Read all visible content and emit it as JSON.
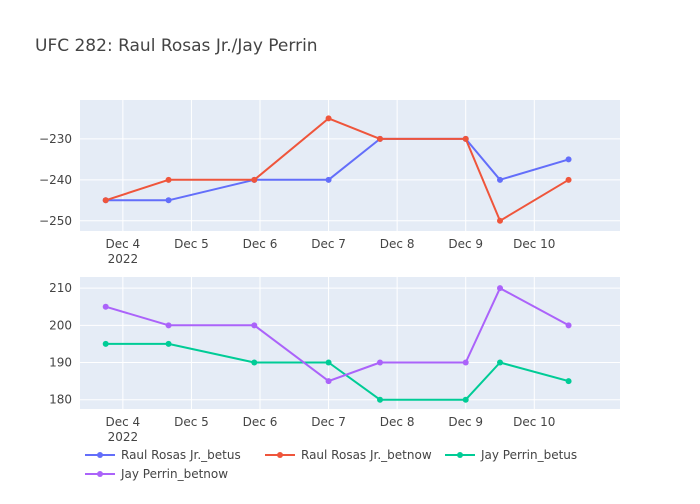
{
  "chart_data": {
    "type": "line",
    "title": "UFC 282: Raul Rosas Jr./Jay Perrin",
    "x_ticks": [
      {
        "label": "Dec 4",
        "sublabel": "2022",
        "date": "2022-12-04"
      },
      {
        "label": "Dec 5",
        "date": "2022-12-05"
      },
      {
        "label": "Dec 6",
        "date": "2022-12-06"
      },
      {
        "label": "Dec 7",
        "date": "2022-12-07"
      },
      {
        "label": "Dec 8",
        "date": "2022-12-08"
      },
      {
        "label": "Dec 9",
        "date": "2022-12-09"
      },
      {
        "label": "Dec 10",
        "date": "2022-12-10"
      }
    ],
    "x_range": [
      "2022-12-03 09:00",
      "2022-12-11 06:00"
    ],
    "panels": [
      {
        "ylim": [
          -252.5,
          -220.5
        ],
        "y_ticks": [
          -230,
          -240,
          -250
        ],
        "y_tick_labels": [
          "−230",
          "−240",
          "−250"
        ],
        "series": [
          {
            "name": "Raul Rosas Jr._betus",
            "color": "#636efa",
            "x": [
              "2022-12-03 18:00",
              "2022-12-04 16:00",
              "2022-12-05 22:00",
              "2022-12-07 00:00",
              "2022-12-07 18:00",
              "2022-12-09 00:00",
              "2022-12-09 12:00",
              "2022-12-10 12:00"
            ],
            "y": [
              -245,
              -245,
              -240,
              -240,
              -230,
              -230,
              -240,
              -235
            ]
          },
          {
            "name": "Raul Rosas Jr._betnow",
            "color": "#ef553b",
            "x": [
              "2022-12-03 18:00",
              "2022-12-04 16:00",
              "2022-12-05 22:00",
              "2022-12-07 00:00",
              "2022-12-07 18:00",
              "2022-12-09 00:00",
              "2022-12-09 12:00",
              "2022-12-10 12:00"
            ],
            "y": [
              -245,
              -240,
              -240,
              -225,
              -230,
              -230,
              -250,
              -240
            ]
          }
        ]
      },
      {
        "ylim": [
          177.5,
          213
        ],
        "y_ticks": [
          210,
          200,
          190,
          180
        ],
        "y_tick_labels": [
          "210",
          "200",
          "190",
          "180"
        ],
        "series": [
          {
            "name": "Jay Perrin_betus",
            "color": "#00cc96",
            "x": [
              "2022-12-03 18:00",
              "2022-12-04 16:00",
              "2022-12-05 22:00",
              "2022-12-07 00:00",
              "2022-12-07 18:00",
              "2022-12-09 00:00",
              "2022-12-09 12:00",
              "2022-12-10 12:00"
            ],
            "y": [
              195,
              195,
              190,
              190,
              180,
              180,
              190,
              185
            ]
          },
          {
            "name": "Jay Perrin_betnow",
            "color": "#ab63fa",
            "x": [
              "2022-12-03 18:00",
              "2022-12-04 16:00",
              "2022-12-05 22:00",
              "2022-12-07 00:00",
              "2022-12-07 18:00",
              "2022-12-09 00:00",
              "2022-12-09 12:00",
              "2022-12-10 12:00"
            ],
            "y": [
              205,
              200,
              200,
              185,
              190,
              190,
              210,
              200
            ]
          }
        ]
      }
    ],
    "legend": {
      "placement": "bottom",
      "entries": [
        "Raul Rosas Jr._betus",
        "Raul Rosas Jr._betnow",
        "Jay Perrin_betus",
        "Jay Perrin_betnow"
      ]
    },
    "colors": {
      "plot_bg": "#e5ecf6",
      "grid": "#ffffff",
      "text": "#444444",
      "title": "#444444"
    }
  }
}
